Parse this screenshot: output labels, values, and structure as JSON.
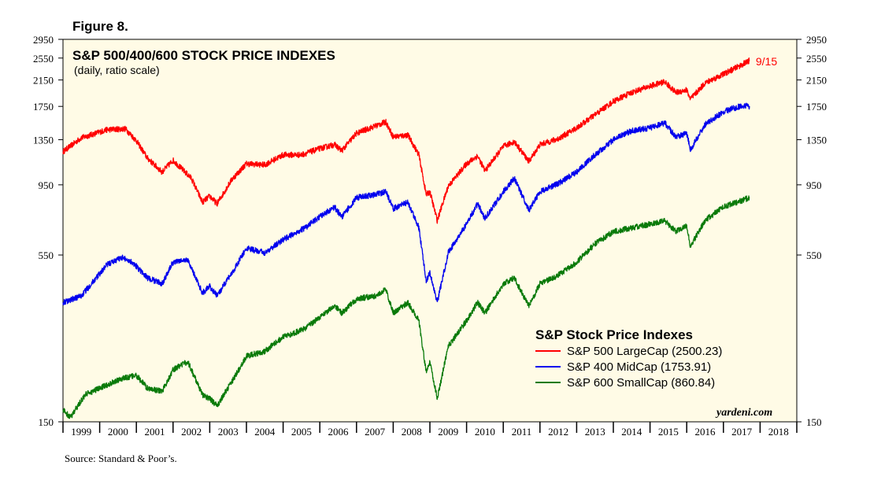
{
  "figure_label": "Figure 8.",
  "source": "Source: Standard & Poor’s.",
  "brand": "yardeni.com",
  "colors": {
    "background": "#fffbe6",
    "sp500": "#ff0000",
    "sp400": "#0000ee",
    "sp600": "#0a7a0a"
  },
  "chart_data": {
    "type": "line",
    "title": "S&P 500/400/600 STOCK PRICE INDEXES",
    "subtitle": "(daily, ratio scale)",
    "y_scale": "log",
    "ylim": [
      150,
      2950
    ],
    "yticks": [
      150,
      550,
      950,
      1350,
      1750,
      2150,
      2550,
      2950
    ],
    "xlim": [
      1999,
      2019
    ],
    "x_tick_labels": [
      "1999",
      "2000",
      "2001",
      "2002",
      "2003",
      "2004",
      "2005",
      "2006",
      "2007",
      "2008",
      "2009",
      "2010",
      "2011",
      "2012",
      "2013",
      "2014",
      "2015",
      "2016",
      "2017",
      "2018"
    ],
    "annotation": {
      "text": "9/15",
      "x": 2017.71,
      "y": 2500.23
    },
    "legend": {
      "title": "S&P Stock Price Indexes",
      "placement": "bottom-right"
    },
    "series": [
      {
        "name": "S&P 500 LargeCap (2500.23)",
        "color": "#ff0000",
        "x": [
          1999.0,
          1999.5,
          2000.2,
          2000.7,
          2001.0,
          2001.3,
          2001.7,
          2002.0,
          2002.5,
          2002.8,
          2003.0,
          2003.2,
          2003.6,
          2004.0,
          2004.5,
          2005.0,
          2005.5,
          2006.0,
          2006.4,
          2006.6,
          2007.0,
          2007.5,
          2007.8,
          2008.0,
          2008.4,
          2008.7,
          2008.9,
          2009.0,
          2009.2,
          2009.5,
          2010.0,
          2010.3,
          2010.5,
          2011.0,
          2011.3,
          2011.7,
          2012.0,
          2012.5,
          2013.0,
          2013.5,
          2014.0,
          2014.5,
          2015.0,
          2015.4,
          2015.7,
          2016.0,
          2016.1,
          2016.5,
          2017.0,
          2017.5,
          2017.71
        ],
        "values": [
          1230,
          1370,
          1460,
          1470,
          1340,
          1170,
          1050,
          1150,
          1000,
          830,
          870,
          820,
          990,
          1120,
          1110,
          1200,
          1200,
          1260,
          1300,
          1240,
          1420,
          1500,
          1550,
          1380,
          1400,
          1200,
          880,
          900,
          720,
          940,
          1120,
          1190,
          1060,
          1280,
          1330,
          1140,
          1300,
          1360,
          1480,
          1640,
          1820,
          1950,
          2050,
          2120,
          1950,
          1990,
          1850,
          2100,
          2250,
          2420,
          2500.23
        ]
      },
      {
        "name": "S&P 400 MidCap (1753.91)",
        "color": "#0000ee",
        "x": [
          1999.0,
          1999.5,
          2000.2,
          2000.6,
          2000.9,
          2001.3,
          2001.7,
          2002.0,
          2002.4,
          2002.8,
          2003.0,
          2003.2,
          2003.7,
          2004.0,
          2004.5,
          2005.0,
          2005.6,
          2006.0,
          2006.4,
          2006.6,
          2007.0,
          2007.5,
          2007.8,
          2008.0,
          2008.4,
          2008.7,
          2008.9,
          2009.0,
          2009.2,
          2009.5,
          2010.0,
          2010.3,
          2010.5,
          2011.0,
          2011.3,
          2011.7,
          2012.0,
          2012.5,
          2013.0,
          2013.5,
          2014.0,
          2014.5,
          2015.0,
          2015.4,
          2015.7,
          2016.0,
          2016.1,
          2016.5,
          2017.0,
          2017.5,
          2017.71
        ],
        "values": [
          380,
          400,
          510,
          540,
          520,
          460,
          440,
          520,
          530,
          410,
          430,
          400,
          500,
          580,
          560,
          620,
          680,
          740,
          800,
          740,
          860,
          880,
          900,
          790,
          830,
          680,
          450,
          480,
          380,
          560,
          700,
          820,
          730,
          900,
          1000,
          780,
          900,
          960,
          1050,
          1200,
          1350,
          1450,
          1480,
          1540,
          1380,
          1420,
          1250,
          1520,
          1680,
          1760,
          1753.91
        ]
      },
      {
        "name": "S&P 600 SmallCap (860.84)",
        "color": "#0a7a0a",
        "x": [
          1999.0,
          1999.2,
          1999.6,
          2000.2,
          2000.6,
          2001.0,
          2001.3,
          2001.7,
          2002.0,
          2002.4,
          2002.8,
          2003.0,
          2003.2,
          2003.7,
          2004.0,
          2004.5,
          2005.0,
          2005.6,
          2006.0,
          2006.4,
          2006.6,
          2007.0,
          2007.5,
          2007.8,
          2008.0,
          2008.4,
          2008.7,
          2008.9,
          2009.0,
          2009.2,
          2009.5,
          2010.0,
          2010.3,
          2010.5,
          2011.0,
          2011.3,
          2011.7,
          2012.0,
          2012.5,
          2013.0,
          2013.5,
          2014.0,
          2014.5,
          2015.0,
          2015.4,
          2015.7,
          2016.0,
          2016.1,
          2016.5,
          2017.0,
          2017.5,
          2017.71
        ],
        "values": [
          165,
          155,
          185,
          200,
          210,
          215,
          195,
          190,
          225,
          240,
          185,
          180,
          170,
          215,
          250,
          260,
          290,
          310,
          340,
          370,
          350,
          390,
          400,
          420,
          350,
          380,
          330,
          220,
          240,
          180,
          270,
          330,
          380,
          350,
          440,
          460,
          370,
          440,
          470,
          520,
          600,
          660,
          680,
          700,
          720,
          660,
          690,
          590,
          720,
          800,
          840,
          860.84
        ]
      }
    ]
  }
}
